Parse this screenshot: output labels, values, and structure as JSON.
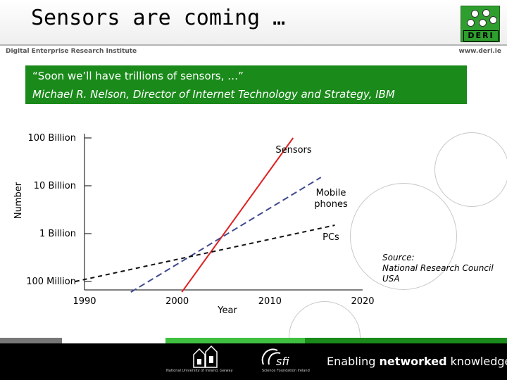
{
  "header": {
    "title": "Sensors are coming …",
    "institute": "Digital Enterprise Research Institute",
    "url": "www.deri.ie",
    "logo_text": "DERI"
  },
  "quote": {
    "text": "“Soon we’ll have trillions of sensors, …”",
    "attribution": "Michael R. Nelson, Director of Internet Technology and Strategy, IBM"
  },
  "chart_data": {
    "type": "line",
    "xlabel": "Year",
    "ylabel": "Number",
    "y_scale": "log",
    "x_ticks": [
      1990,
      2000,
      2010,
      2020
    ],
    "y_ticks": [
      {
        "value": 100000000000,
        "label": "100 Billion"
      },
      {
        "value": 10000000000,
        "label": "10 Billion"
      },
      {
        "value": 1000000000,
        "label": "1 Billion"
      },
      {
        "value": 100000000,
        "label": "100 Million"
      }
    ],
    "series": [
      {
        "name": "Sensors",
        "color": "#e02020",
        "style": "solid",
        "x": [
          2000.5,
          2012.5
        ],
        "y": [
          60000000,
          100000000000
        ]
      },
      {
        "name": "Mobile phones",
        "color": "#404a90",
        "style": "dashed",
        "x": [
          1995,
          2015.5
        ],
        "y": [
          60000000,
          15000000000
        ]
      },
      {
        "name": "PCs",
        "color": "#111111",
        "style": "dashed",
        "x": [
          1989,
          2017
        ],
        "y": [
          100000000,
          1500000000
        ]
      }
    ],
    "source": [
      "Source:",
      "National Research Council",
      "USA"
    ]
  },
  "footer": {
    "tagline_regular_1": "Enabling ",
    "tagline_bold": "networked",
    "tagline_regular_2": " knowledge.",
    "nuig_caption": "National University of Ireland, Galway",
    "sfi_text": "sfi",
    "sfi_caption": "Science Foundation Ireland"
  },
  "colors": {
    "quote_bg": "#1a8a1a",
    "logo_green": "#2e9e2e",
    "footer_bg": "#000000",
    "footer_strip": [
      "#777777",
      "#ffffff",
      "#40c040",
      "#1a8a1a"
    ]
  }
}
